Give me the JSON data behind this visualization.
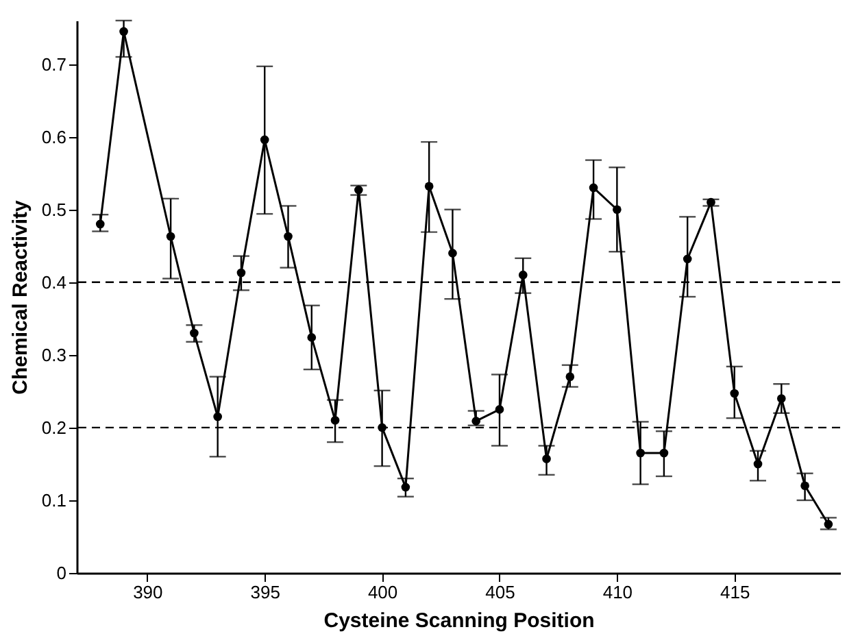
{
  "chart_data": {
    "type": "line",
    "xlabel": "Cysteine Scanning Position",
    "ylabel": "Chemical Reactivity",
    "x": [
      388,
      389,
      391,
      392,
      393,
      394,
      395,
      396,
      397,
      398,
      399,
      400,
      401,
      402,
      403,
      404,
      405,
      406,
      407,
      408,
      409,
      410,
      411,
      412,
      413,
      414,
      415,
      416,
      417,
      418,
      419
    ],
    "series": [
      {
        "color": "#000000",
        "values": [
          0.48,
          0.745,
          0.463,
          0.33,
          0.215,
          0.413,
          0.596,
          0.463,
          0.324,
          0.21,
          0.527,
          0.2,
          0.118,
          0.532,
          0.44,
          0.209,
          0.225,
          0.41,
          0.157,
          0.27,
          0.53,
          0.5,
          0.165,
          0.165,
          0.432,
          0.51,
          0.247,
          0.15,
          0.24,
          0.12,
          0.067
        ],
        "errors": [
          [
            0.47,
            0.493
          ],
          [
            0.71,
            0.76
          ],
          [
            0.405,
            0.515
          ],
          [
            0.318,
            0.341
          ],
          [
            0.16,
            0.27
          ],
          [
            0.389,
            0.436
          ],
          [
            0.494,
            0.697
          ],
          [
            0.42,
            0.505
          ],
          [
            0.28,
            0.368
          ],
          [
            0.18,
            0.238
          ],
          [
            0.52,
            0.533
          ],
          [
            0.147,
            0.251
          ],
          [
            0.105,
            0.13
          ],
          [
            0.469,
            0.593
          ],
          [
            0.377,
            0.5
          ],
          [
            0.203,
            0.223
          ],
          [
            0.175,
            0.273
          ],
          [
            0.385,
            0.433
          ],
          [
            0.135,
            0.175
          ],
          [
            0.256,
            0.286
          ],
          [
            0.487,
            0.568
          ],
          [
            0.442,
            0.558
          ],
          [
            0.122,
            0.208
          ],
          [
            0.133,
            0.195
          ],
          [
            0.38,
            0.49
          ],
          [
            0.505,
            0.514
          ],
          [
            0.213,
            0.284
          ],
          [
            0.127,
            0.168
          ],
          [
            0.22,
            0.26
          ],
          [
            0.1,
            0.137
          ],
          [
            0.06,
            0.076
          ]
        ]
      }
    ],
    "xlim": [
      387,
      419.5
    ],
    "xticks": [
      390,
      395,
      400,
      405,
      410,
      415
    ],
    "ylim": [
      0,
      0.76
    ],
    "yticks": [
      0,
      0.1,
      0.2,
      0.3,
      0.4,
      0.5,
      0.6,
      0.7
    ],
    "marker": "circle",
    "line_style": "solid",
    "grid": false,
    "ref_lines": [
      {
        "axis": "y",
        "value": 0.2,
        "line_style": "dashed"
      },
      {
        "axis": "y",
        "value": 0.4,
        "line_style": "dashed"
      }
    ]
  }
}
